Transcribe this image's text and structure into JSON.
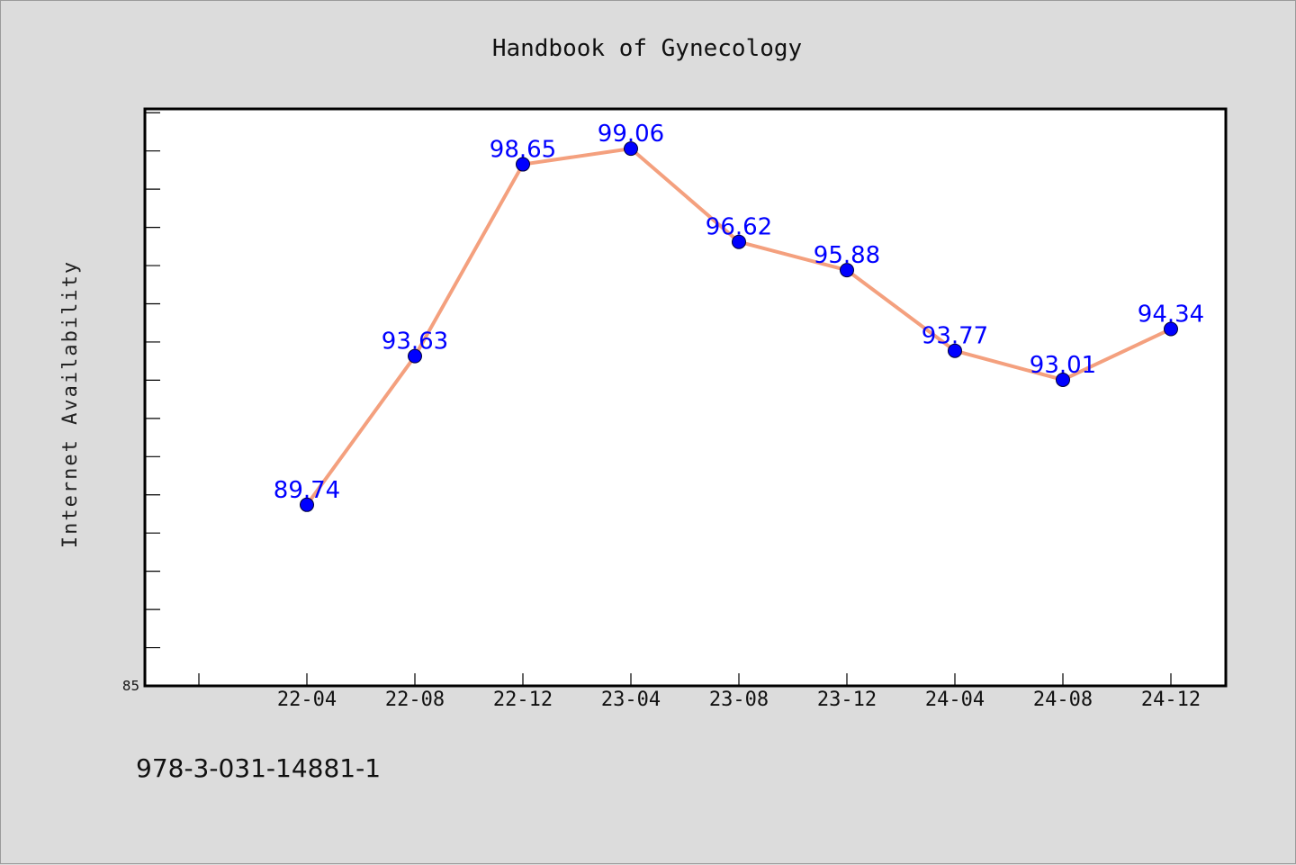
{
  "chart_data": {
    "type": "line",
    "title": "Handbook of Gynecology",
    "xlabel": "",
    "ylabel": "Internet Availability",
    "categories": [
      "22-04",
      "22-08",
      "22-12",
      "23-04",
      "23-08",
      "23-12",
      "24-04",
      "24-08",
      "24-12"
    ],
    "series": [
      {
        "values": [
          89.74,
          93.63,
          98.65,
          99.06,
          96.62,
          95.88,
          93.77,
          93.01,
          94.34
        ],
        "line_color": "#f4a07e",
        "marker_color": "#0000ff"
      }
    ],
    "ylim": [
      85,
      100.1
    ],
    "ytick_labels": [
      "85"
    ],
    "data_labels": true,
    "grid": false,
    "legend": "none",
    "footer": "978-3-031-14881-1"
  }
}
